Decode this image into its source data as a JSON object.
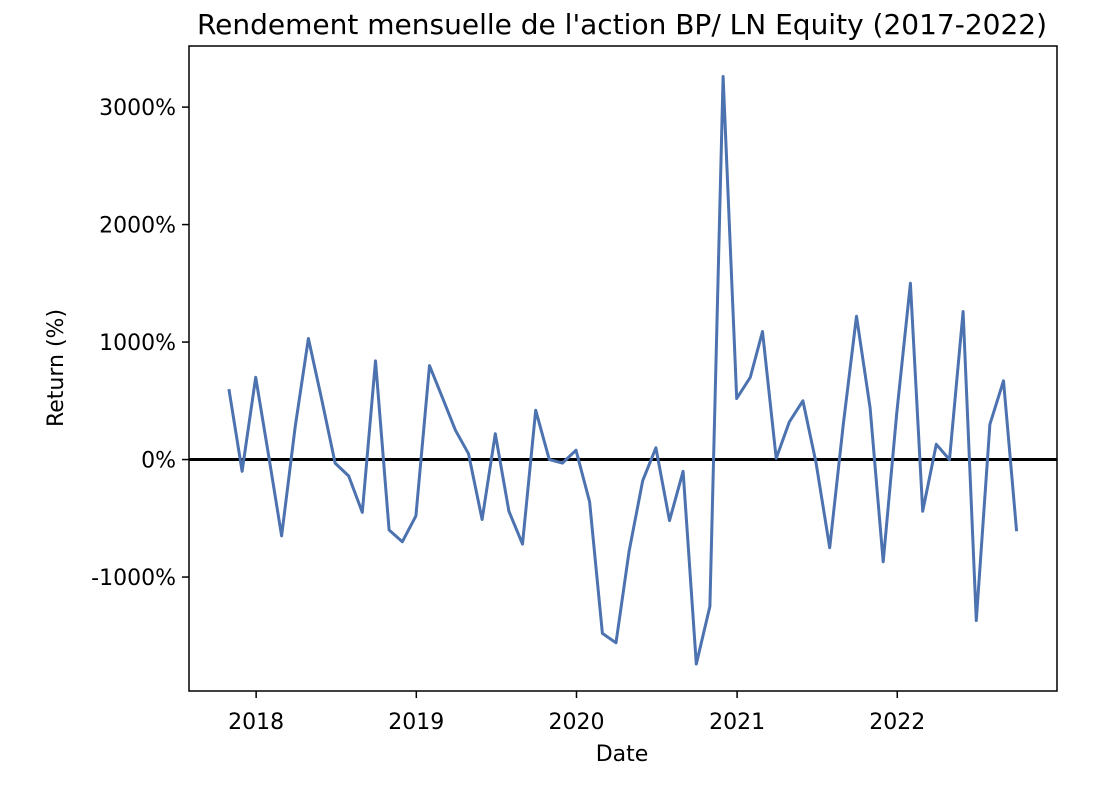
{
  "chart_data": {
    "type": "line",
    "title": "Rendement mensuelle de l'action BP/ LN Equity (2017-2022)",
    "xlabel": "Date",
    "ylabel": "Return (%)",
    "xlim": [
      "2017-08-01",
      "2022-12-31"
    ],
    "ylim": [
      -1970,
      3520
    ],
    "x_ticks": [
      "2018-01-01",
      "2019-01-01",
      "2020-01-01",
      "2021-01-01",
      "2022-01-01"
    ],
    "x_tick_labels": [
      "2018",
      "2019",
      "2020",
      "2021",
      "2022"
    ],
    "y_ticks": [
      -1000,
      0,
      1000,
      2000,
      3000
    ],
    "y_tick_labels": [
      "-1000%",
      "0%",
      "1000%",
      "2000%",
      "3000%"
    ],
    "grid": false,
    "reference_line": {
      "y": 0,
      "color": "#000000"
    },
    "series": [
      {
        "color": "#4c72b0",
        "x": [
          "2017-10-31",
          "2017-11-30",
          "2017-12-31",
          "2018-01-31",
          "2018-02-28",
          "2018-03-31",
          "2018-04-30",
          "2018-05-31",
          "2018-06-30",
          "2018-07-31",
          "2018-08-31",
          "2018-09-30",
          "2018-10-31",
          "2018-11-30",
          "2018-12-31",
          "2019-01-31",
          "2019-02-28",
          "2019-03-31",
          "2019-04-30",
          "2019-05-31",
          "2019-06-30",
          "2019-07-31",
          "2019-08-31",
          "2019-09-30",
          "2019-10-31",
          "2019-11-30",
          "2019-12-31",
          "2020-01-31",
          "2020-02-29",
          "2020-03-31",
          "2020-04-30",
          "2020-05-31",
          "2020-06-30",
          "2020-07-31",
          "2020-08-31",
          "2020-09-30",
          "2020-10-31",
          "2020-11-30",
          "2020-12-31",
          "2021-01-31",
          "2021-02-28",
          "2021-03-31",
          "2021-04-30",
          "2021-05-31",
          "2021-06-30",
          "2021-07-31",
          "2021-08-31",
          "2021-09-30",
          "2021-10-31",
          "2021-11-30",
          "2021-12-31",
          "2022-01-31",
          "2022-02-28",
          "2022-03-31",
          "2022-04-30",
          "2022-05-31",
          "2022-06-30",
          "2022-07-31",
          "2022-08-31",
          "2022-09-30"
        ],
        "values": [
          600,
          -100,
          700,
          0,
          -650,
          280,
          1030,
          500,
          -30,
          -140,
          -450,
          840,
          -600,
          -700,
          -480,
          800,
          540,
          250,
          50,
          -510,
          220,
          -440,
          -720,
          420,
          0,
          -30,
          80,
          -360,
          -1480,
          -1560,
          -780,
          -180,
          100,
          -520,
          -100,
          -1740,
          -1250,
          3260,
          520,
          700,
          1090,
          10,
          320,
          500,
          -30,
          -750,
          300,
          1220,
          440,
          -870,
          400,
          1500,
          -440,
          130,
          0,
          1260,
          -1370,
          300,
          670,
          -610
        ]
      }
    ]
  }
}
